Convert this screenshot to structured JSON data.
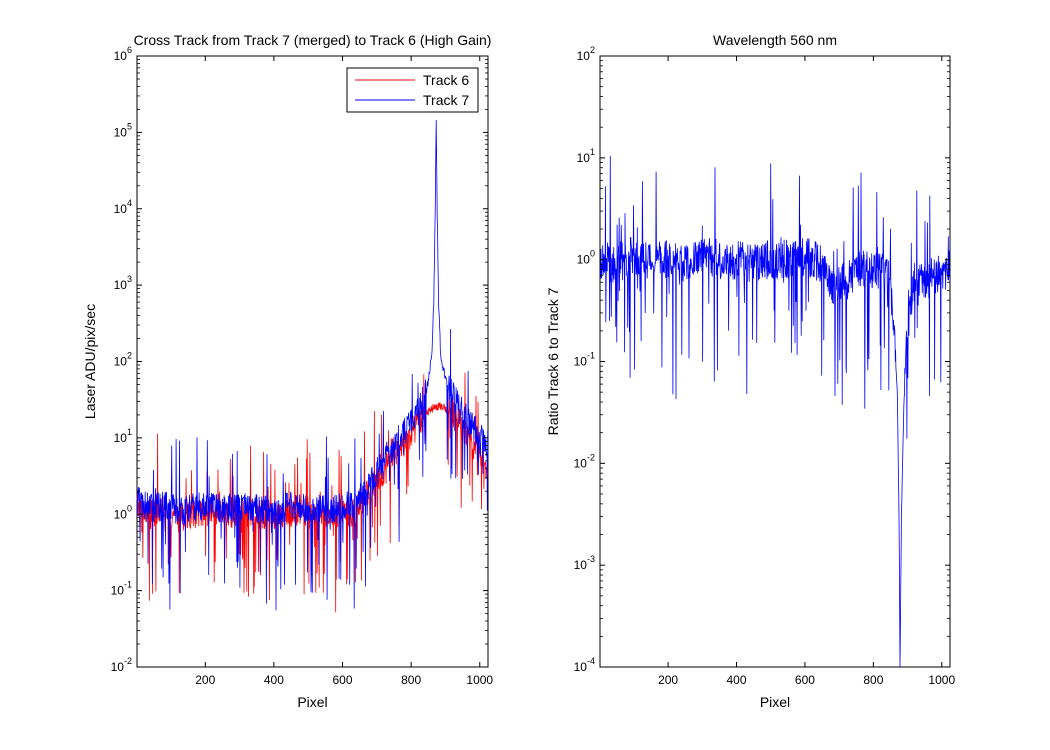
{
  "chart_data": [
    {
      "type": "line",
      "title": "Cross Track from Track 7 (merged) to Track 6 (High Gain)",
      "xlabel": "Pixel",
      "ylabel": "Laser ADU/pix/sec",
      "xlim": [
        1,
        1024
      ],
      "ylim": [
        0.01,
        1000000
      ],
      "yscale": "log",
      "grid": false,
      "legend_position": "top-right",
      "xticks": [
        200,
        400,
        600,
        800,
        1000
      ],
      "yticks": [
        {
          "base": "10",
          "exp": "-2"
        },
        {
          "base": "10",
          "exp": "-1"
        },
        {
          "base": "10",
          "exp": "0"
        },
        {
          "base": "10",
          "exp": "1"
        },
        {
          "base": "10",
          "exp": "2"
        },
        {
          "base": "10",
          "exp": "3"
        },
        {
          "base": "10",
          "exp": "4"
        },
        {
          "base": "10",
          "exp": "5"
        },
        {
          "base": "10",
          "exp": "6"
        }
      ],
      "series": [
        {
          "name": "Track 6",
          "color": "#ff0000",
          "x": [
            1,
            40,
            80,
            120,
            160,
            200,
            250,
            300,
            350,
            400,
            450,
            500,
            550,
            600,
            640,
            680,
            720,
            760,
            800,
            830,
            860,
            880,
            900,
            930,
            960,
            990,
            1024
          ],
          "y": [
            1.2,
            1.0,
            1.1,
            0.9,
            1.0,
            1.1,
            1.0,
            1.0,
            1.0,
            0.9,
            1.1,
            1.0,
            1.0,
            1.0,
            1.1,
            2.0,
            3.5,
            6.0,
            11,
            17,
            24,
            26,
            24,
            18,
            12,
            7,
            4
          ]
        },
        {
          "name": "Track 7",
          "color": "#0000ff",
          "x": [
            1,
            40,
            80,
            120,
            160,
            200,
            250,
            300,
            350,
            400,
            450,
            500,
            550,
            600,
            640,
            680,
            720,
            760,
            800,
            830,
            850,
            860,
            866,
            870,
            873,
            876,
            880,
            886,
            900,
            930,
            960,
            990,
            1024
          ],
          "y": [
            1.5,
            1.2,
            1.3,
            1.1,
            1.2,
            1.3,
            1.2,
            1.2,
            1.2,
            1.1,
            1.3,
            1.2,
            1.2,
            1.2,
            1.4,
            2.5,
            5.0,
            9.0,
            16,
            28,
            55,
            120,
            600,
            8000,
            160000,
            8000,
            600,
            120,
            60,
            30,
            18,
            12,
            8
          ]
        }
      ]
    },
    {
      "type": "line",
      "title": "Wavelength 560 nm",
      "xlabel": "Pixel",
      "ylabel": "Ratio Track 6 to Track 7",
      "xlim": [
        1,
        1024
      ],
      "ylim": [
        0.0001,
        100
      ],
      "yscale": "log",
      "grid": false,
      "xticks": [
        200,
        400,
        600,
        800,
        1000
      ],
      "yticks": [
        {
          "base": "10",
          "exp": "-4"
        },
        {
          "base": "10",
          "exp": "-3"
        },
        {
          "base": "10",
          "exp": "-2"
        },
        {
          "base": "10",
          "exp": "-1"
        },
        {
          "base": "10",
          "exp": "0"
        },
        {
          "base": "10",
          "exp": "1"
        },
        {
          "base": "10",
          "exp": "2"
        }
      ],
      "series": [
        {
          "color": "#0000ff",
          "x": [
            1,
            50,
            100,
            150,
            200,
            250,
            300,
            350,
            400,
            450,
            500,
            550,
            600,
            650,
            680,
            700,
            730,
            760,
            790,
            820,
            850,
            860,
            870,
            875,
            878,
            882,
            890,
            900,
            920,
            950,
            980,
            1024
          ],
          "y": [
            1.0,
            0.9,
            1.1,
            1.0,
            1.0,
            0.9,
            1.1,
            1.0,
            1.0,
            0.9,
            1.0,
            1.0,
            1.1,
            0.9,
            0.5,
            0.6,
            0.7,
            0.8,
            0.8,
            0.8,
            0.6,
            0.2,
            0.05,
            0.003,
            0.0001,
            0.003,
            0.05,
            0.2,
            0.6,
            0.6,
            0.7,
            0.8
          ]
        }
      ]
    }
  ]
}
